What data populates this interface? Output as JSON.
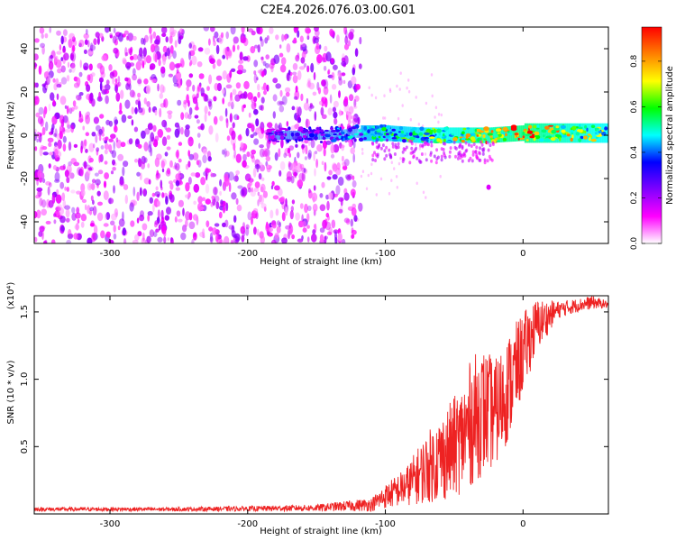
{
  "title": "C2E4.2026.076.03.00.G01",
  "chart_data": [
    {
      "type": "heatmap",
      "xlabel": "Height of straight line (km)",
      "ylabel": "Frequency (Hz)",
      "xlim": [
        -355,
        62
      ],
      "ylim": [
        -50,
        50
      ],
      "xticks": [
        -300,
        -200,
        -100,
        0
      ],
      "xtick_labels": [
        "-300",
        "-200",
        "-100",
        "0"
      ],
      "yticks": [
        -40,
        -20,
        0,
        20,
        40
      ],
      "ytick_labels": [
        "-40",
        "-20",
        "0",
        "20",
        "40"
      ],
      "grid": false,
      "colorbar": {
        "label": "Normalized spectral amplitude",
        "range": [
          0,
          0.95
        ],
        "ticks": [
          0.0,
          0.2,
          0.4,
          0.6,
          0.8
        ],
        "tick_labels": [
          "0.0",
          "0.2",
          "0.4",
          "0.6",
          "0.8"
        ],
        "colormap": [
          "#ffffff",
          "#ff00ff",
          "#8000ff",
          "#0000ff",
          "#00ffff",
          "#00ff00",
          "#ffff00",
          "#ff8000",
          "#ff0000"
        ]
      },
      "noise_region_x": [
        -355,
        -118
      ],
      "signal_band": [
        {
          "x": -185,
          "y": 0,
          "amp": 0.25
        },
        {
          "x": -150,
          "y": 0,
          "amp": 0.3
        },
        {
          "x": -118,
          "y": 1,
          "amp": 0.45
        },
        {
          "x": -100,
          "y": 1,
          "amp": 0.5
        },
        {
          "x": -75,
          "y": 0,
          "amp": 0.55
        },
        {
          "x": -50,
          "y": 0,
          "amp": 0.65
        },
        {
          "x": -25,
          "y": 0,
          "amp": 0.75
        },
        {
          "x": 0,
          "y": 1,
          "amp": 0.85
        },
        {
          "x": 30,
          "y": 1,
          "amp": 0.7
        },
        {
          "x": 62,
          "y": 1,
          "amp": 0.6
        }
      ],
      "band_halfwidth_hz": 3,
      "outlier": {
        "x": -25,
        "y": -24,
        "amp": 0.15
      }
    },
    {
      "type": "line",
      "xlabel": "Height of straight line (km)",
      "ylabel": "SNR (10 * v/v)",
      "multiplier_label": "(x10⁴)",
      "xlim": [
        -355,
        62
      ],
      "ylim": [
        0,
        1.62
      ],
      "xticks": [
        -300,
        -200,
        -100,
        0
      ],
      "xtick_labels": [
        "-300",
        "-200",
        "-100",
        "0"
      ],
      "yticks": [
        0.5,
        1.0,
        1.5
      ],
      "ytick_labels": [
        "0.5",
        "1.0",
        "1.5"
      ],
      "color": "#ee2222",
      "grid": false,
      "envelope": {
        "x": [
          -355,
          -250,
          -190,
          -150,
          -110,
          -100,
          -85,
          -70,
          -55,
          -45,
          -38,
          -30,
          -20,
          -10,
          0,
          10,
          25,
          40,
          50,
          62
        ],
        "lower": [
          0.02,
          0.02,
          0.02,
          0.02,
          0.02,
          0.04,
          0.06,
          0.08,
          0.1,
          0.15,
          0.2,
          0.28,
          0.35,
          0.55,
          0.9,
          1.2,
          1.45,
          1.5,
          1.52,
          1.53
        ],
        "upper": [
          0.05,
          0.05,
          0.06,
          0.07,
          0.12,
          0.22,
          0.35,
          0.6,
          0.8,
          0.95,
          1.15,
          1.25,
          1.15,
          1.35,
          1.5,
          1.6,
          1.58,
          1.6,
          1.62,
          1.58
        ]
      }
    }
  ]
}
